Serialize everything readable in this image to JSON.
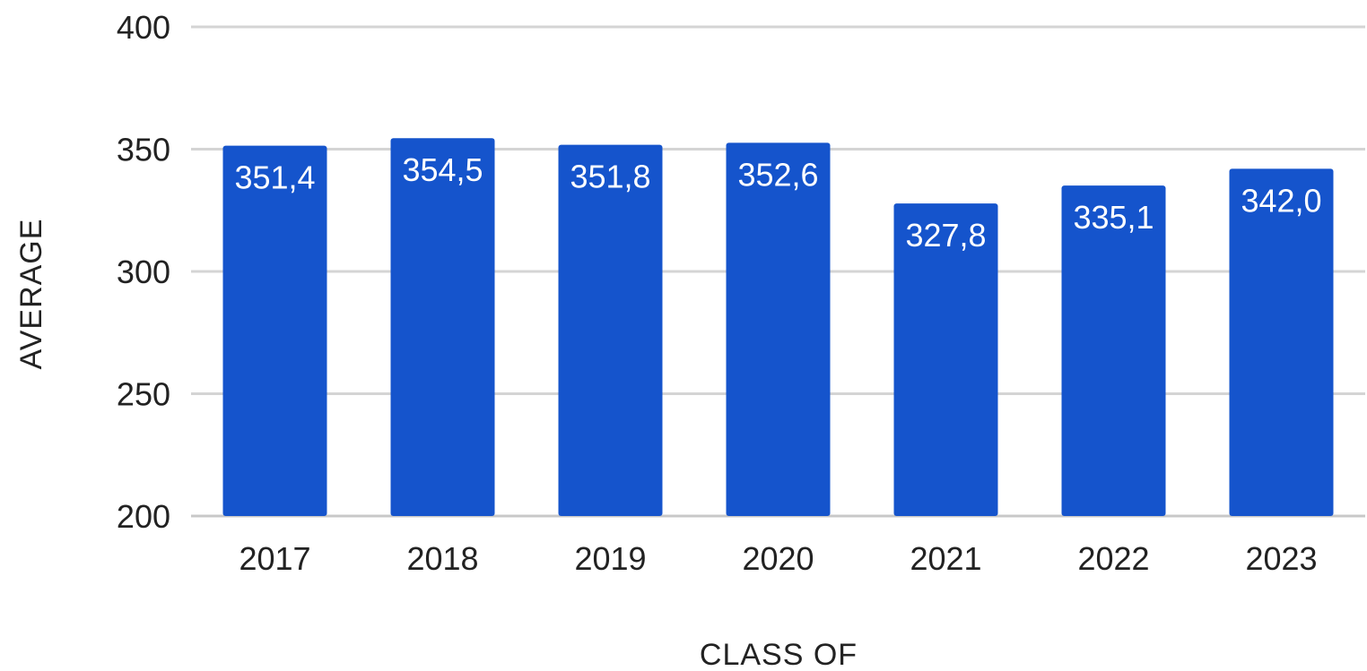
{
  "chart_data": {
    "type": "bar",
    "title": "",
    "xlabel": "CLASS OF",
    "ylabel": "AVERAGE",
    "categories": [
      "2017",
      "2018",
      "2019",
      "2020",
      "2021",
      "2022",
      "2023"
    ],
    "values": [
      351.4,
      354.5,
      351.8,
      352.6,
      327.8,
      335.1,
      342.0
    ],
    "value_labels": [
      "351,4",
      "354,5",
      "351,8",
      "352,6",
      "327,8",
      "335,1",
      "342,0"
    ],
    "ylim": [
      200,
      400
    ],
    "yticks": [
      200,
      250,
      300,
      350,
      400
    ],
    "grid": true,
    "legend": "none",
    "bar_color": "#1554cc"
  }
}
